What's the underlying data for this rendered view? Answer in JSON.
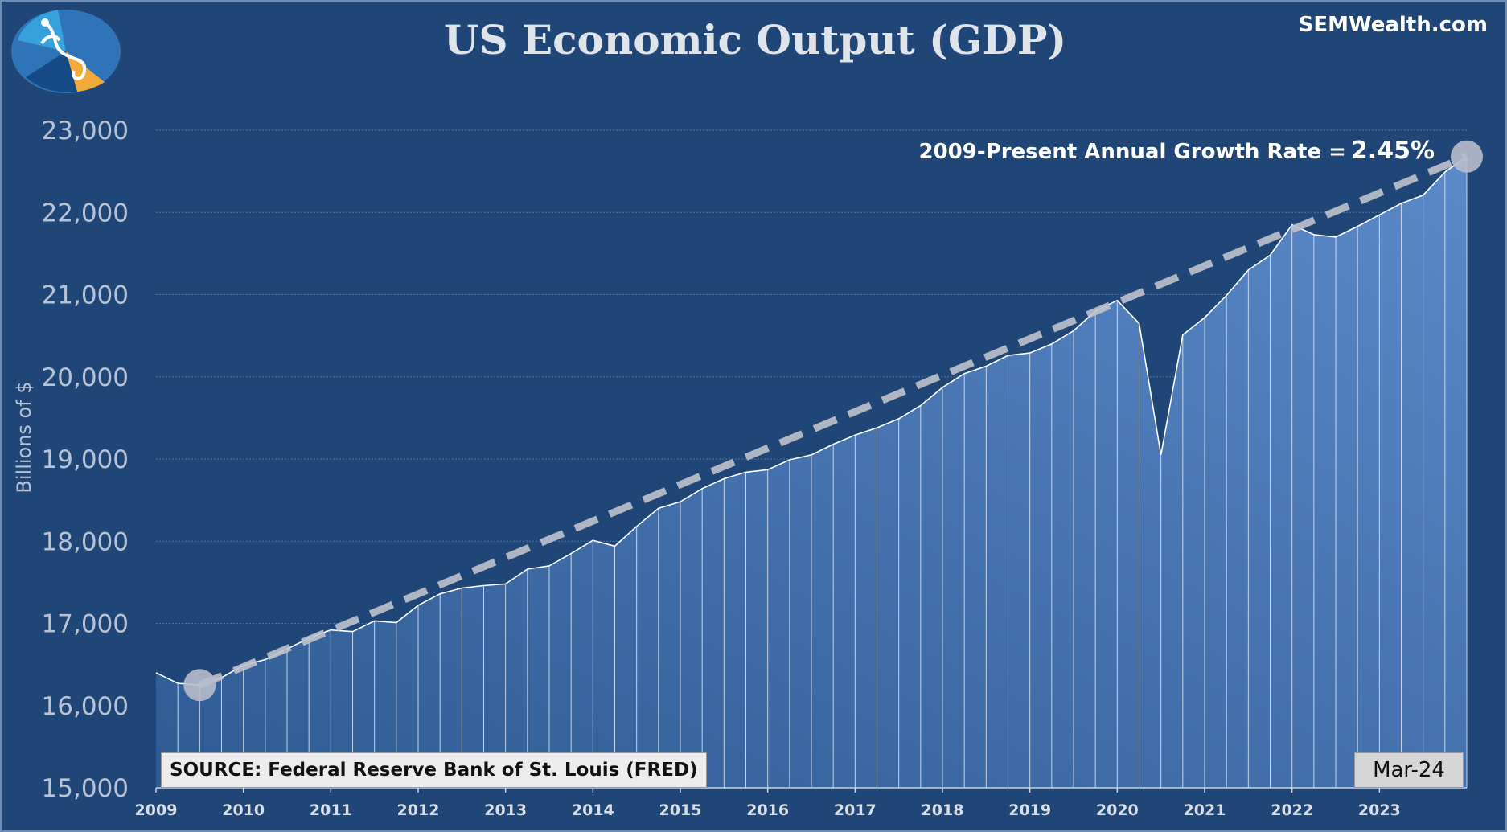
{
  "title": "US Economic Output (GDP)",
  "brand": "SEMWealth.com",
  "growth_label": "2009-Present Annual Growth Rate =",
  "growth_rate": "2.45%",
  "source": "SOURCE: Federal Reserve Bank of St. Louis (FRED)",
  "as_of": "Mar-24",
  "colors": {
    "background": "#204677",
    "area_top": "#5b89c9",
    "area_bottom": "#2f5b93",
    "trend": "#bfc3cc",
    "grid": "#6f8bb0"
  },
  "chart_data": {
    "type": "area",
    "title": "US Economic Output (GDP)",
    "ylabel": "Billions of $",
    "xlabel": "",
    "ylim": [
      15000,
      23000
    ],
    "yticks": [
      "15,000",
      "16,000",
      "17,000",
      "18,000",
      "19,000",
      "20,000",
      "21,000",
      "22,000",
      "23,000"
    ],
    "ytick_values": [
      15000,
      16000,
      17000,
      18000,
      19000,
      20000,
      21000,
      22000,
      23000
    ],
    "xticks": [
      "2009",
      "2010",
      "2011",
      "2012",
      "2013",
      "2014",
      "2015",
      "2016",
      "2017",
      "2018",
      "2019",
      "2020",
      "2021",
      "2022",
      "2023"
    ],
    "x_start": "2009Q1",
    "frequency": "quarterly",
    "values": [
      16400,
      16270,
      16250,
      16340,
      16490,
      16560,
      16690,
      16820,
      16920,
      16900,
      17030,
      17010,
      17220,
      17360,
      17430,
      17460,
      17480,
      17660,
      17700,
      17850,
      18010,
      17940,
      18180,
      18400,
      18480,
      18640,
      18760,
      18840,
      18870,
      18990,
      19050,
      19180,
      19290,
      19380,
      19490,
      19650,
      19870,
      20040,
      20130,
      20260,
      20290,
      20400,
      20560,
      20800,
      20930,
      20650,
      19050,
      20510,
      20720,
      20990,
      21300,
      21480,
      21850,
      21730,
      21700,
      21830,
      21970,
      22110,
      22210,
      22490,
      22680
    ],
    "trend_start": {
      "x_index": 2,
      "value": 16250
    },
    "trend_end": {
      "x_index": 60,
      "value": 22680
    }
  }
}
